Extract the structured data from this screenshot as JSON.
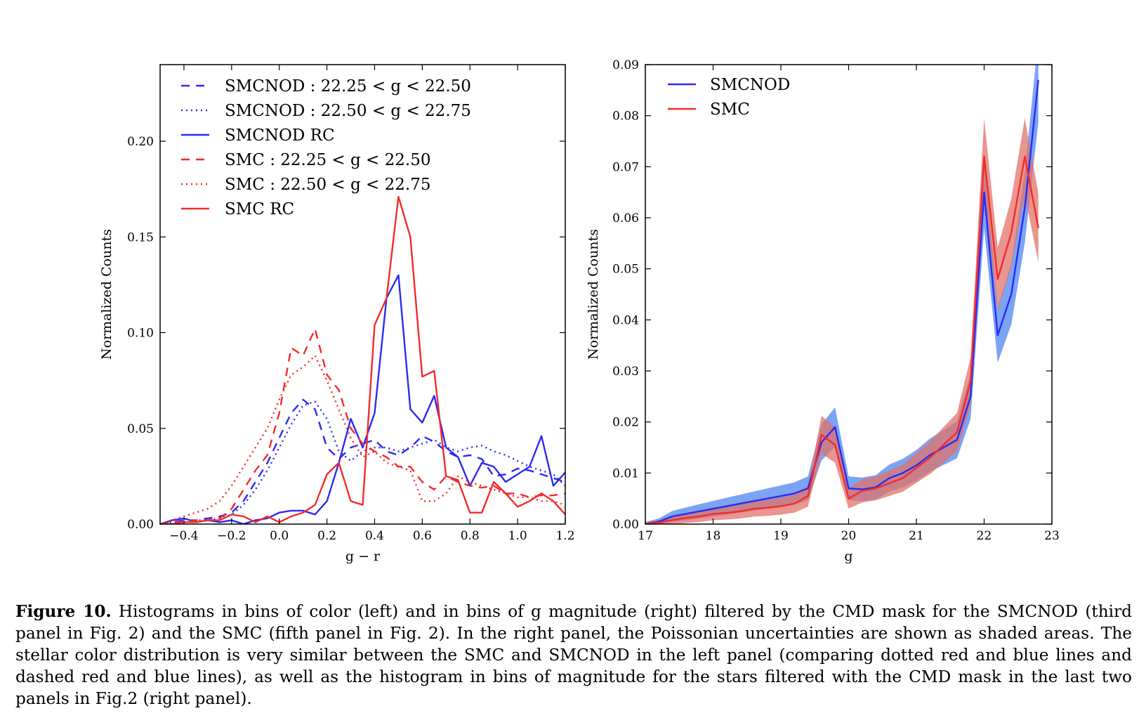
{
  "chart_data": [
    {
      "type": "line",
      "xlabel": "g − r",
      "ylabel": "Normalized Counts",
      "xlim": [
        -0.5,
        1.2
      ],
      "ylim": [
        0.0,
        0.24
      ],
      "xticks": [
        "−0.4",
        "−0.2",
        "0.0",
        "0.2",
        "0.4",
        "0.6",
        "0.8",
        "1.0",
        "1.2"
      ],
      "yticks": [
        "0.00",
        "0.05",
        "0.10",
        "0.15",
        "0.20"
      ],
      "legend_position": "top-left",
      "grid": false,
      "series": [
        {
          "name": "SMCNOD : 22.25 < g < 22.50",
          "color": "#2a2af5",
          "style": "dashed",
          "x": [
            -0.5,
            -0.45,
            -0.4,
            -0.35,
            -0.3,
            -0.25,
            -0.2,
            -0.15,
            -0.1,
            -0.05,
            0.0,
            0.05,
            0.1,
            0.15,
            0.2,
            0.25,
            0.3,
            0.35,
            0.4,
            0.45,
            0.5,
            0.55,
            0.6,
            0.65,
            0.7,
            0.75,
            0.8,
            0.85,
            0.9,
            0.95,
            1.0,
            1.05,
            1.1,
            1.15,
            1.2
          ],
          "y": [
            0.0,
            0.001,
            0.002,
            0.002,
            0.003,
            0.004,
            0.006,
            0.012,
            0.022,
            0.032,
            0.045,
            0.058,
            0.065,
            0.06,
            0.04,
            0.034,
            0.04,
            0.042,
            0.044,
            0.038,
            0.036,
            0.04,
            0.046,
            0.043,
            0.038,
            0.035,
            0.036,
            0.034,
            0.025,
            0.026,
            0.029,
            0.028,
            0.026,
            0.024,
            0.022
          ]
        },
        {
          "name": "SMCNOD : 22.50 < g < 22.75",
          "color": "#2a2af5",
          "style": "dotted",
          "x": [
            -0.5,
            -0.45,
            -0.4,
            -0.35,
            -0.3,
            -0.25,
            -0.2,
            -0.15,
            -0.1,
            -0.05,
            0.0,
            0.05,
            0.1,
            0.15,
            0.2,
            0.25,
            0.3,
            0.35,
            0.4,
            0.45,
            0.5,
            0.55,
            0.6,
            0.65,
            0.7,
            0.75,
            0.8,
            0.85,
            0.9,
            0.95,
            1.0,
            1.05,
            1.1,
            1.15,
            1.2
          ],
          "y": [
            0.0,
            0.001,
            0.001,
            0.002,
            0.002,
            0.003,
            0.005,
            0.01,
            0.018,
            0.028,
            0.04,
            0.052,
            0.062,
            0.064,
            0.055,
            0.038,
            0.033,
            0.038,
            0.04,
            0.04,
            0.038,
            0.04,
            0.042,
            0.044,
            0.04,
            0.038,
            0.04,
            0.041,
            0.038,
            0.036,
            0.033,
            0.03,
            0.028,
            0.026,
            0.02
          ]
        },
        {
          "name": "SMCNOD RC",
          "color": "#2a2af5",
          "style": "solid",
          "x": [
            -0.5,
            -0.45,
            -0.4,
            -0.35,
            -0.3,
            -0.25,
            -0.2,
            -0.15,
            -0.1,
            -0.05,
            0.0,
            0.05,
            0.1,
            0.15,
            0.2,
            0.25,
            0.3,
            0.35,
            0.4,
            0.45,
            0.5,
            0.55,
            0.6,
            0.65,
            0.7,
            0.75,
            0.8,
            0.85,
            0.9,
            0.95,
            1.0,
            1.05,
            1.1,
            1.15,
            1.2
          ],
          "y": [
            0.0,
            0.002,
            0.003,
            0.001,
            0.002,
            0.001,
            0.002,
            0.0,
            0.002,
            0.003,
            0.006,
            0.007,
            0.007,
            0.005,
            0.012,
            0.032,
            0.055,
            0.04,
            0.058,
            0.118,
            0.13,
            0.06,
            0.053,
            0.067,
            0.04,
            0.035,
            0.02,
            0.032,
            0.03,
            0.022,
            0.026,
            0.03,
            0.046,
            0.02,
            0.027
          ]
        },
        {
          "name": "SMC : 22.25 < g < 22.50",
          "color": "#f52a2a",
          "style": "dashed",
          "x": [
            -0.5,
            -0.45,
            -0.4,
            -0.35,
            -0.3,
            -0.25,
            -0.2,
            -0.15,
            -0.1,
            -0.05,
            0.0,
            0.05,
            0.1,
            0.15,
            0.2,
            0.25,
            0.3,
            0.35,
            0.4,
            0.45,
            0.5,
            0.55,
            0.6,
            0.65,
            0.7,
            0.75,
            0.8,
            0.85,
            0.9,
            0.95,
            1.0,
            1.05,
            1.1,
            1.15,
            1.2
          ],
          "y": [
            0.0,
            0.001,
            0.001,
            0.002,
            0.002,
            0.003,
            0.008,
            0.018,
            0.028,
            0.036,
            0.058,
            0.092,
            0.088,
            0.102,
            0.078,
            0.07,
            0.05,
            0.042,
            0.038,
            0.035,
            0.03,
            0.03,
            0.022,
            0.018,
            0.025,
            0.022,
            0.02,
            0.019,
            0.02,
            0.016,
            0.016,
            0.014,
            0.015,
            0.015,
            0.016
          ]
        },
        {
          "name": "SMC : 22.50 < g < 22.75",
          "color": "#f52a2a",
          "style": "dotted",
          "x": [
            -0.5,
            -0.45,
            -0.4,
            -0.35,
            -0.3,
            -0.25,
            -0.2,
            -0.15,
            -0.1,
            -0.05,
            0.0,
            0.05,
            0.1,
            0.15,
            0.2,
            0.25,
            0.3,
            0.35,
            0.4,
            0.45,
            0.5,
            0.55,
            0.6,
            0.65,
            0.7,
            0.75,
            0.8,
            0.85,
            0.9,
            0.95,
            1.0,
            1.05,
            1.1,
            1.15,
            1.2
          ],
          "y": [
            0.0,
            0.002,
            0.004,
            0.006,
            0.008,
            0.012,
            0.02,
            0.03,
            0.04,
            0.05,
            0.065,
            0.078,
            0.082,
            0.088,
            0.075,
            0.06,
            0.045,
            0.035,
            0.038,
            0.032,
            0.03,
            0.028,
            0.012,
            0.012,
            0.016,
            0.025,
            0.022,
            0.02,
            0.018,
            0.016,
            0.014,
            0.014,
            0.012,
            0.012,
            0.01
          ]
        },
        {
          "name": "SMC RC",
          "color": "#f52a2a",
          "style": "solid",
          "x": [
            -0.5,
            -0.45,
            -0.4,
            -0.35,
            -0.3,
            -0.25,
            -0.2,
            -0.15,
            -0.1,
            -0.05,
            0.0,
            0.05,
            0.1,
            0.15,
            0.2,
            0.25,
            0.3,
            0.35,
            0.4,
            0.45,
            0.5,
            0.55,
            0.6,
            0.65,
            0.7,
            0.75,
            0.8,
            0.85,
            0.9,
            0.95,
            1.0,
            1.05,
            1.1,
            1.15,
            1.2
          ],
          "y": [
            0.0,
            0.0,
            0.001,
            0.001,
            0.002,
            0.002,
            0.005,
            0.004,
            0.001,
            0.004,
            0.001,
            0.004,
            0.006,
            0.01,
            0.026,
            0.032,
            0.012,
            0.01,
            0.104,
            0.118,
            0.171,
            0.15,
            0.077,
            0.08,
            0.025,
            0.023,
            0.006,
            0.006,
            0.022,
            0.016,
            0.009,
            0.012,
            0.016,
            0.012,
            0.005
          ]
        }
      ]
    },
    {
      "type": "line",
      "xlabel": "g",
      "ylabel": "Normalized Counts",
      "xlim": [
        17,
        23
      ],
      "ylim": [
        0.0,
        0.09
      ],
      "xticks": [
        "17",
        "18",
        "19",
        "20",
        "21",
        "22",
        "23"
      ],
      "yticks": [
        "0.00",
        "0.01",
        "0.02",
        "0.03",
        "0.04",
        "0.05",
        "0.06",
        "0.07",
        "0.08",
        "0.09"
      ],
      "legend_position": "top-left",
      "grid": false,
      "shaded_uncertainty": "Poisson",
      "series": [
        {
          "name": "SMCNOD",
          "color": "#2a2af5",
          "shade": "#4f86f0",
          "x": [
            17.0,
            17.2,
            17.4,
            17.6,
            17.8,
            18.0,
            18.2,
            18.4,
            18.6,
            18.8,
            19.0,
            19.2,
            19.4,
            19.6,
            19.8,
            20.0,
            20.2,
            20.4,
            20.6,
            20.8,
            21.0,
            21.2,
            21.4,
            21.6,
            21.8,
            22.0,
            22.2,
            22.4,
            22.6,
            22.8
          ],
          "y": [
            0.0,
            0.0005,
            0.0015,
            0.002,
            0.0025,
            0.003,
            0.0035,
            0.004,
            0.0045,
            0.005,
            0.0055,
            0.006,
            0.007,
            0.016,
            0.019,
            0.007,
            0.0068,
            0.0072,
            0.009,
            0.01,
            0.0115,
            0.0135,
            0.015,
            0.0165,
            0.025,
            0.065,
            0.037,
            0.045,
            0.062,
            0.087
          ]
        },
        {
          "name": "SMC",
          "color": "#f52a2a",
          "shade": "#e0736a",
          "x": [
            17.0,
            17.2,
            17.4,
            17.6,
            17.8,
            18.0,
            18.2,
            18.4,
            18.6,
            18.8,
            19.0,
            19.2,
            19.4,
            19.6,
            19.8,
            20.0,
            20.2,
            20.4,
            20.6,
            20.8,
            21.0,
            21.2,
            21.4,
            21.6,
            21.8,
            22.0,
            22.2,
            22.4,
            22.6,
            22.8
          ],
          "y": [
            0.0,
            0.0003,
            0.0008,
            0.0012,
            0.0015,
            0.002,
            0.0022,
            0.0025,
            0.003,
            0.0032,
            0.0035,
            0.004,
            0.0055,
            0.0175,
            0.0155,
            0.005,
            0.0065,
            0.007,
            0.008,
            0.009,
            0.011,
            0.013,
            0.0155,
            0.018,
            0.028,
            0.072,
            0.048,
            0.057,
            0.072,
            0.058
          ]
        }
      ]
    }
  ],
  "caption": {
    "label": "Figure 10.",
    "text": "Histograms in bins of color (left) and in bins of g magnitude (right) filtered by the CMD mask for the SMCNOD (third panel in Fig. 2) and the SMC (fifth panel in Fig. 2). In the right panel, the Poissonian uncertainties are shown as shaded areas. The stellar color distribution is very similar between the SMC and SMCNOD in the left panel (comparing dotted red and blue lines and dashed red and blue lines), as well as the histogram in bins of magnitude for the stars filtered with the CMD mask in the last two panels in Fig.2 (right panel)."
  }
}
